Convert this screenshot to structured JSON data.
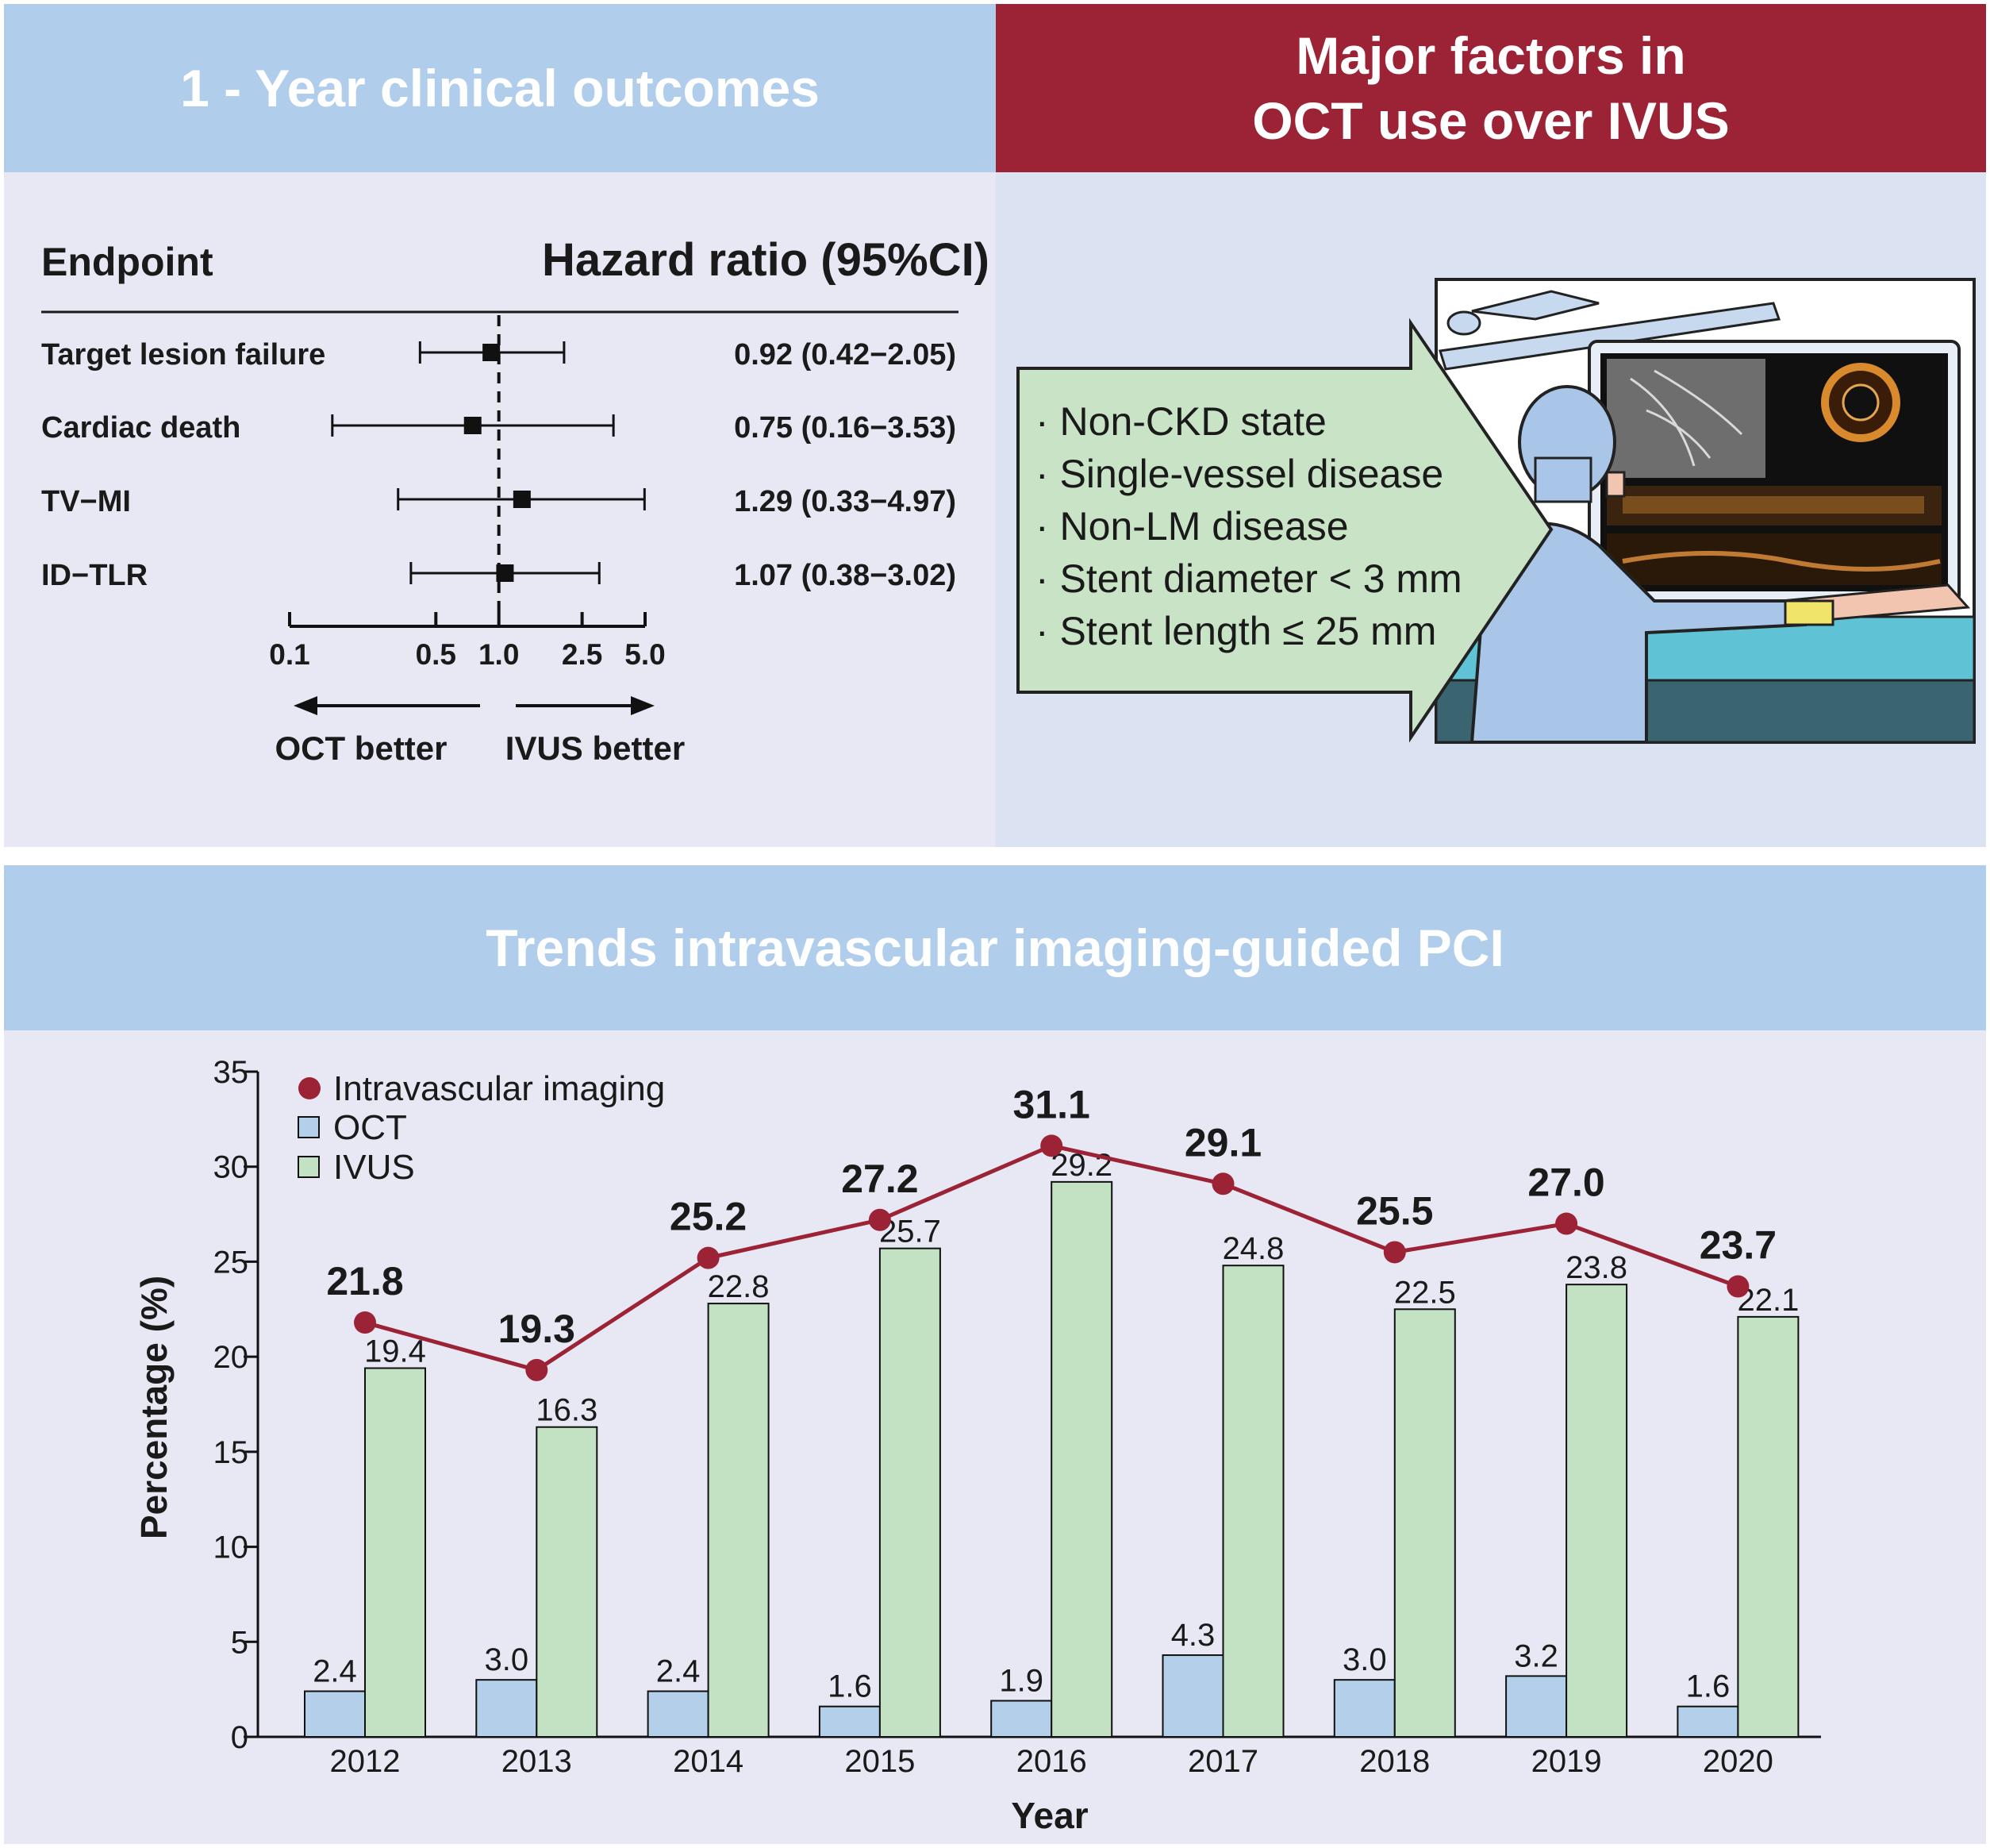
{
  "panels": {
    "clinical_title": "1 - Year clinical outcomes",
    "factors_title_line1": "Major factors in",
    "factors_title_line2": "OCT use over IVUS",
    "trends_title": "Trends intravascular imaging-guided PCI"
  },
  "forest": {
    "col_endpoint": "Endpoint",
    "col_hr": "Hazard ratio (95%CI)",
    "rows": [
      {
        "label": "Target lesion failure",
        "hr": 0.92,
        "lo": 0.42,
        "hi": 2.05,
        "text": "0.92 (0.42−2.05)"
      },
      {
        "label": "Cardiac death",
        "hr": 0.75,
        "lo": 0.16,
        "hi": 3.53,
        "text": "0.75 (0.16−3.53)"
      },
      {
        "label": "TV−MI",
        "hr": 1.29,
        "lo": 0.33,
        "hi": 4.97,
        "text": "1.29 (0.33−4.97)"
      },
      {
        "label": "ID−TLR",
        "hr": 1.07,
        "lo": 0.38,
        "hi": 3.02,
        "text": "1.07 (0.38−3.02)"
      }
    ],
    "ticks": [
      {
        "v": 0.1,
        "label": "0.1"
      },
      {
        "v": 0.5,
        "label": "0.5"
      },
      {
        "v": 1.0,
        "label": "1.0"
      },
      {
        "v": 2.5,
        "label": "2.5"
      },
      {
        "v": 5.0,
        "label": "5.0"
      }
    ],
    "scale": "log",
    "left_arrow_label": "OCT better",
    "right_arrow_label": "IVUS better"
  },
  "factors": [
    "Non-CKD state",
    "Single-vessel disease",
    "Non-LM disease",
    "Stent diameter < 3 mm",
    "Stent length ≤ 25 mm"
  ],
  "colors": {
    "header_blue": "#b0cdeb",
    "header_red": "#9c2236",
    "oct_bar": "#b3cfea",
    "ivus_bar": "#c3e1c3",
    "line": "#9c2236",
    "callout": "#c8e3c5"
  },
  "chart_data": {
    "type": "bar",
    "categories": [
      "2012",
      "2013",
      "2014",
      "2015",
      "2016",
      "2017",
      "2018",
      "2019",
      "2020"
    ],
    "series": [
      {
        "name": "OCT",
        "kind": "bar",
        "values": [
          2.4,
          3.0,
          2.4,
          1.6,
          1.9,
          4.3,
          3.0,
          3.2,
          1.6
        ],
        "labels": [
          "2.4",
          "3.0",
          "2.4",
          "1.6",
          "1.9",
          "4.3",
          "3.0",
          "3.2",
          "1.6"
        ]
      },
      {
        "name": "IVUS",
        "kind": "bar",
        "values": [
          19.4,
          16.3,
          22.8,
          25.7,
          29.2,
          24.8,
          22.5,
          23.8,
          22.1
        ],
        "labels": [
          "19.4",
          "16.3",
          "22.8",
          "25.7",
          "29.2",
          "24.8",
          "22.5",
          "23.8",
          "22.1"
        ]
      },
      {
        "name": "Intravascular imaging",
        "kind": "line",
        "values": [
          21.8,
          19.3,
          25.2,
          27.2,
          31.1,
          29.1,
          25.5,
          27.0,
          23.7
        ],
        "labels": [
          "21.8",
          "19.3",
          "25.2",
          "27.2",
          "31.1",
          "29.1",
          "25.5",
          "27.0",
          "23.7"
        ]
      }
    ],
    "xlabel": "Year",
    "ylabel": "Percentage (%)",
    "ylim": [
      0,
      35
    ],
    "yticks": [
      "0",
      "5",
      "10",
      "15",
      "20",
      "25",
      "30",
      "35"
    ],
    "grid": false,
    "legend_position": "top-left"
  }
}
